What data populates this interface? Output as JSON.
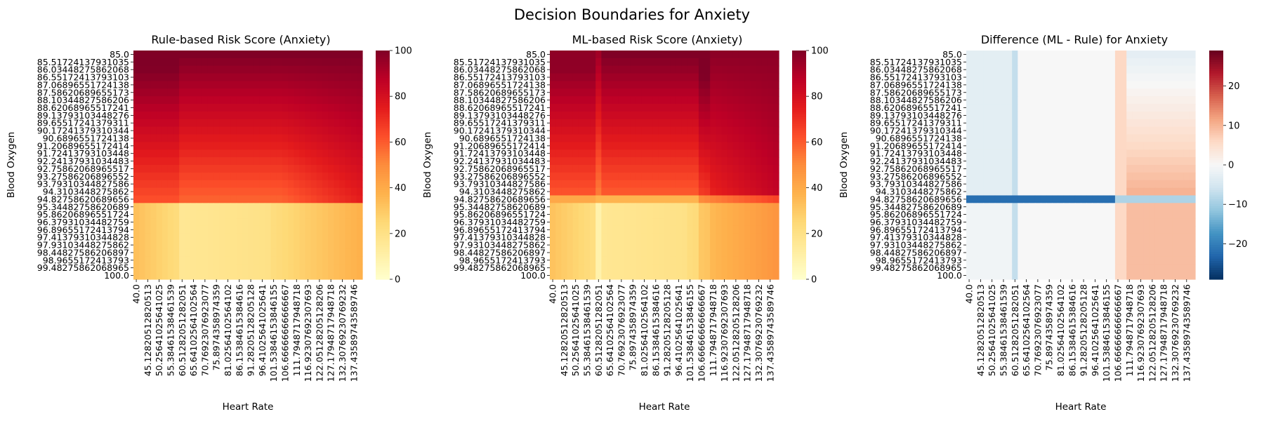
{
  "figure": {
    "title": "Decision Boundaries for Anxiety"
  },
  "colors": {
    "ylorrd": [
      "#ffffcc",
      "#ffeda0",
      "#fed976",
      "#feb24c",
      "#fd8d3c",
      "#fc4e2a",
      "#e31a1c",
      "#bd0026",
      "#800026"
    ],
    "rdbu": [
      "#053061",
      "#2166ac",
      "#4393c3",
      "#92c5de",
      "#d1e5f0",
      "#f7f7f7",
      "#fddbc7",
      "#f4a582",
      "#d6604d",
      "#b2182b",
      "#67001f"
    ]
  },
  "chart_data": [
    {
      "type": "heatmap",
      "title": "Rule-based Risk Score (Anxiety)",
      "xlabel": "Heart Rate",
      "ylabel": "Blood Oxygen",
      "x": {
        "min": 40,
        "max": 140,
        "n": 40
      },
      "y": {
        "min": 85,
        "max": 100,
        "n": 30
      },
      "x_ticklabels": [
        "40.0",
        "45.12820512820513",
        "50.25641025641025",
        "55.38461538461539",
        "60.51282051282051",
        "65.64102564102564",
        "70.76923076923077",
        "75.8974358974359",
        "81.02564102564102",
        "86.15384615384616",
        "91.28205128205128",
        "96.41025641025641",
        "101.53846153846155",
        "106.66666666666667",
        "111.7948717948718",
        "116.92307692307693",
        "122.05128205128206",
        "127.17948717948718",
        "132.30769230769232",
        "137.43589743589746"
      ],
      "y_ticklabels": [
        "85.0",
        "85.51724137931035",
        "86.03448275862068",
        "86.55172413793103",
        "87.06896551724138",
        "87.58620689655173",
        "88.10344827586206",
        "88.62068965517241",
        "89.13793103448276",
        "89.65517241379311",
        "90.17241379310344",
        "90.6896551724138",
        "91.20689655172414",
        "91.72413793103448",
        "92.24137931034483",
        "92.75862068965517",
        "93.27586206896552",
        "93.79310344827586",
        "94.3103448275862",
        "94.82758620689656",
        "95.34482758620689",
        "95.86206896551724",
        "96.37931034482759",
        "96.89655172413794",
        "97.41379310344828",
        "97.93103448275862",
        "98.44827586206897",
        "98.9655172413793",
        "99.48275862068965",
        "100.0"
      ],
      "colormap": "YlOrRd",
      "colorbar": {
        "min": 0,
        "max": 100,
        "ticks": [
          "0",
          "20",
          "40",
          "60",
          "80",
          "100"
        ]
      }
    },
    {
      "type": "heatmap",
      "title": "ML-based Risk Score (Anxiety)",
      "xlabel": "Heart Rate",
      "ylabel": "Blood Oxygen",
      "x": {
        "min": 40,
        "max": 140,
        "n": 40
      },
      "y": {
        "min": 85,
        "max": 100,
        "n": 30
      },
      "x_ticklabels": [
        "40.0",
        "45.12820512820513",
        "50.25641025641025",
        "55.38461538461539",
        "60.51282051282051",
        "65.64102564102564",
        "70.76923076923077",
        "75.8974358974359",
        "81.02564102564102",
        "86.15384615384616",
        "91.28205128205128",
        "96.41025641025641",
        "101.53846153846155",
        "106.66666666666667",
        "111.7948717948718",
        "116.92307692307693",
        "122.05128205128206",
        "127.17948717948718",
        "132.30769230769232",
        "137.43589743589746"
      ],
      "y_ticklabels": [
        "85.0",
        "85.51724137931035",
        "86.03448275862068",
        "86.55172413793103",
        "87.06896551724138",
        "87.58620689655173",
        "88.10344827586206",
        "88.62068965517241",
        "89.13793103448276",
        "89.65517241379311",
        "90.17241379310344",
        "90.6896551724138",
        "91.20689655172414",
        "91.72413793103448",
        "92.24137931034483",
        "92.75862068965517",
        "93.27586206896552",
        "93.79310344827586",
        "94.3103448275862",
        "94.82758620689656",
        "95.34482758620689",
        "95.86206896551724",
        "96.37931034482759",
        "96.89655172413794",
        "97.41379310344828",
        "97.93103448275862",
        "98.44827586206897",
        "98.9655172413793",
        "99.48275862068965",
        "100.0"
      ],
      "colormap": "YlOrRd",
      "colorbar": {
        "min": 0,
        "max": 100,
        "ticks": [
          "0",
          "20",
          "40",
          "60",
          "80",
          "100"
        ]
      }
    },
    {
      "type": "heatmap",
      "title": "Difference (ML - Rule) for Anxiety",
      "xlabel": "Heart Rate",
      "ylabel": "Blood Oxygen",
      "x": {
        "min": 40,
        "max": 140,
        "n": 40
      },
      "y": {
        "min": 85,
        "max": 100,
        "n": 30
      },
      "x_ticklabels": [
        "40.0",
        "45.12820512820513",
        "50.25641025641025",
        "55.38461538461539",
        "60.51282051282051",
        "65.64102564102564",
        "70.76923076923077",
        "75.8974358974359",
        "81.02564102564102",
        "86.15384615384616",
        "91.28205128205128",
        "96.41025641025641",
        "101.53846153846155",
        "106.66666666666667",
        "111.7948717948718",
        "116.92307692307693",
        "122.05128205128206",
        "127.17948717948718",
        "132.30769230769232",
        "137.43589743589746"
      ],
      "y_ticklabels": [
        "85.0",
        "85.51724137931035",
        "86.03448275862068",
        "86.55172413793103",
        "87.06896551724138",
        "87.58620689655173",
        "88.10344827586206",
        "88.62068965517241",
        "89.13793103448276",
        "89.65517241379311",
        "90.17241379310344",
        "90.6896551724138",
        "91.20689655172414",
        "91.72413793103448",
        "92.24137931034483",
        "92.75862068965517",
        "93.27586206896552",
        "93.79310344827586",
        "94.3103448275862",
        "94.82758620689656",
        "95.34482758620689",
        "95.86206896551724",
        "96.37931034482759",
        "96.89655172413794",
        "97.41379310344828",
        "97.93103448275862",
        "98.44827586206897",
        "98.9655172413793",
        "99.48275862068965",
        "100.0"
      ],
      "colormap": "RdBu_r",
      "colorbar": {
        "min": -29,
        "max": 29,
        "ticks": [
          "−20",
          "−10",
          "0",
          "10",
          "20"
        ],
        "tick_values": [
          -20,
          -10,
          0,
          10,
          20
        ]
      }
    }
  ]
}
